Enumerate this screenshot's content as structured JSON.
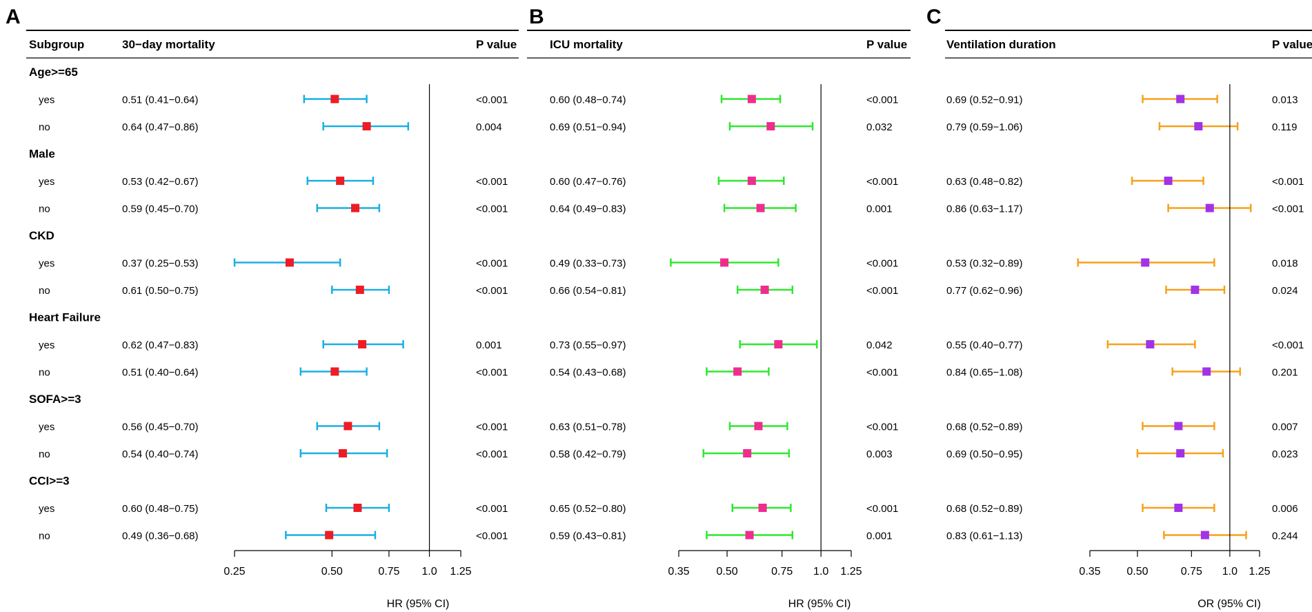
{
  "panels": [
    {
      "letter": "A",
      "subgroup_header": "Subgroup",
      "outcome_header": "30−day mortality",
      "p_header": "P value",
      "axis_label": "HR (95% CI)",
      "colors": {
        "ci": "#1AAFE4",
        "point": "#EE1C25"
      },
      "chart_data": {
        "type": "forest",
        "scale": "log",
        "xlim": [
          0.25,
          1.25
        ],
        "reference": 1.0,
        "ticks": [
          0.25,
          0.5,
          0.75,
          1.0,
          1.25
        ],
        "tick_labels": [
          "0.25",
          "0.50",
          "0.75",
          "1.0",
          "1.25"
        ],
        "xlabel": "HR (95% CI)",
        "groups": [
          {
            "name": "Age>=65",
            "rows": [
              {
                "label": "yes",
                "est": 0.51,
                "lo": 0.41,
                "hi": 0.64,
                "text": "0.51 (0.41−0.64)",
                "p": "<0.001"
              },
              {
                "label": "no",
                "est": 0.64,
                "lo": 0.47,
                "hi": 0.86,
                "text": "0.64 (0.47−0.86)",
                "p": "0.004"
              }
            ]
          },
          {
            "name": "Male",
            "rows": [
              {
                "label": "yes",
                "est": 0.53,
                "lo": 0.42,
                "hi": 0.67,
                "text": "0.53 (0.42−0.67)",
                "p": "<0.001"
              },
              {
                "label": "no",
                "est": 0.59,
                "lo": 0.45,
                "hi": 0.7,
                "text": "0.59 (0.45−0.70)",
                "p": "<0.001"
              }
            ]
          },
          {
            "name": "CKD",
            "rows": [
              {
                "label": "yes",
                "est": 0.37,
                "lo": 0.25,
                "hi": 0.53,
                "text": "0.37 (0.25−0.53)",
                "p": "<0.001"
              },
              {
                "label": "no",
                "est": 0.61,
                "lo": 0.5,
                "hi": 0.75,
                "text": "0.61 (0.50−0.75)",
                "p": "<0.001"
              }
            ]
          },
          {
            "name": "Heart Failure",
            "rows": [
              {
                "label": "yes",
                "est": 0.62,
                "lo": 0.47,
                "hi": 0.83,
                "text": "0.62 (0.47−0.83)",
                "p": "0.001"
              },
              {
                "label": "no",
                "est": 0.51,
                "lo": 0.4,
                "hi": 0.64,
                "text": "0.51 (0.40−0.64)",
                "p": "<0.001"
              }
            ]
          },
          {
            "name": "SOFA>=3",
            "rows": [
              {
                "label": "yes",
                "est": 0.56,
                "lo": 0.45,
                "hi": 0.7,
                "text": "0.56 (0.45−0.70)",
                "p": "<0.001"
              },
              {
                "label": "no",
                "est": 0.54,
                "lo": 0.4,
                "hi": 0.74,
                "text": "0.54 (0.40−0.74)",
                "p": "<0.001"
              }
            ]
          },
          {
            "name": "CCI>=3",
            "rows": [
              {
                "label": "yes",
                "est": 0.6,
                "lo": 0.48,
                "hi": 0.75,
                "text": "0.60 (0.48−0.75)",
                "p": "<0.001"
              },
              {
                "label": "no",
                "est": 0.49,
                "lo": 0.36,
                "hi": 0.68,
                "text": "0.49 (0.36−0.68)",
                "p": "<0.001"
              }
            ]
          }
        ]
      }
    },
    {
      "letter": "B",
      "subgroup_header": "",
      "outcome_header": "ICU mortality",
      "p_header": "P value",
      "axis_label": "HR (95% CI)",
      "colors": {
        "ci": "#2EE82E",
        "point": "#EE2D8F"
      },
      "chart_data": {
        "type": "forest",
        "scale": "log",
        "xlim": [
          0.35,
          1.25
        ],
        "reference": 1.0,
        "ticks": [
          0.35,
          0.5,
          0.75,
          1.0,
          1.25
        ],
        "tick_labels": [
          "0.35",
          "0.50",
          "0.75",
          "1.0",
          "1.25"
        ],
        "xlabel": "HR (95% CI)",
        "groups": [
          {
            "name": "Age>=65",
            "rows": [
              {
                "label": "yes",
                "est": 0.6,
                "lo": 0.48,
                "hi": 0.74,
                "text": "0.60 (0.48−0.74)",
                "p": "<0.001"
              },
              {
                "label": "no",
                "est": 0.69,
                "lo": 0.51,
                "hi": 0.94,
                "text": "0.69 (0.51−0.94)",
                "p": "0.032"
              }
            ]
          },
          {
            "name": "Male",
            "rows": [
              {
                "label": "yes",
                "est": 0.6,
                "lo": 0.47,
                "hi": 0.76,
                "text": "0.60 (0.47−0.76)",
                "p": "<0.001"
              },
              {
                "label": "no",
                "est": 0.64,
                "lo": 0.49,
                "hi": 0.83,
                "text": "0.64 (0.49−0.83)",
                "p": "0.001"
              }
            ]
          },
          {
            "name": "CKD",
            "rows": [
              {
                "label": "yes",
                "est": 0.49,
                "lo": 0.33,
                "hi": 0.73,
                "text": "0.49 (0.33−0.73)",
                "p": "<0.001"
              },
              {
                "label": "no",
                "est": 0.66,
                "lo": 0.54,
                "hi": 0.81,
                "text": "0.66 (0.54−0.81)",
                "p": "<0.001"
              }
            ]
          },
          {
            "name": "Heart Failure",
            "rows": [
              {
                "label": "yes",
                "est": 0.73,
                "lo": 0.55,
                "hi": 0.97,
                "text": "0.73 (0.55−0.97)",
                "p": "0.042"
              },
              {
                "label": "no",
                "est": 0.54,
                "lo": 0.43,
                "hi": 0.68,
                "text": "0.54 (0.43−0.68)",
                "p": "<0.001"
              }
            ]
          },
          {
            "name": "SOFA>=3",
            "rows": [
              {
                "label": "yes",
                "est": 0.63,
                "lo": 0.51,
                "hi": 0.78,
                "text": "0.63 (0.51−0.78)",
                "p": "<0.001"
              },
              {
                "label": "no",
                "est": 0.58,
                "lo": 0.42,
                "hi": 0.79,
                "text": "0.58 (0.42−0.79)",
                "p": "0.003"
              }
            ]
          },
          {
            "name": "CCI>=3",
            "rows": [
              {
                "label": "yes",
                "est": 0.65,
                "lo": 0.52,
                "hi": 0.8,
                "text": "0.65 (0.52−0.80)",
                "p": "<0.001"
              },
              {
                "label": "no",
                "est": 0.59,
                "lo": 0.43,
                "hi": 0.81,
                "text": "0.59 (0.43−0.81)",
                "p": "0.001"
              }
            ]
          }
        ]
      }
    },
    {
      "letter": "C",
      "subgroup_header": "",
      "outcome_header": "Ventilation duration",
      "p_header": "P value",
      "axis_label": "OR (95% CI)",
      "colors": {
        "ci": "#F7A11A",
        "point": "#A232E8"
      },
      "chart_data": {
        "type": "forest",
        "scale": "log",
        "xlim": [
          0.35,
          1.25
        ],
        "reference": 1.0,
        "ticks": [
          0.35,
          0.5,
          0.75,
          1.0,
          1.25
        ],
        "tick_labels": [
          "0.35",
          "0.50",
          "0.75",
          "1.0",
          "1.25"
        ],
        "xlabel": "OR (95% CI)",
        "groups": [
          {
            "name": "Age>=65",
            "rows": [
              {
                "label": "yes",
                "est": 0.69,
                "lo": 0.52,
                "hi": 0.91,
                "text": "0.69 (0.52−0.91)",
                "p": "0.013"
              },
              {
                "label": "no",
                "est": 0.79,
                "lo": 0.59,
                "hi": 1.06,
                "text": "0.79 (0.59−1.06)",
                "p": "0.119"
              }
            ]
          },
          {
            "name": "Male",
            "rows": [
              {
                "label": "yes",
                "est": 0.63,
                "lo": 0.48,
                "hi": 0.82,
                "text": "0.63 (0.48−0.82)",
                "p": "<0.001"
              },
              {
                "label": "no",
                "est": 0.86,
                "lo": 0.63,
                "hi": 1.17,
                "text": "0.86 (0.63−1.17)",
                "p": "<0.001"
              }
            ]
          },
          {
            "name": "CKD",
            "rows": [
              {
                "label": "yes",
                "est": 0.53,
                "lo": 0.32,
                "hi": 0.89,
                "text": "0.53 (0.32−0.89)",
                "p": "0.018"
              },
              {
                "label": "no",
                "est": 0.77,
                "lo": 0.62,
                "hi": 0.96,
                "text": "0.77 (0.62−0.96)",
                "p": "0.024"
              }
            ]
          },
          {
            "name": "Heart Failure",
            "rows": [
              {
                "label": "yes",
                "est": 0.55,
                "lo": 0.4,
                "hi": 0.77,
                "text": "0.55 (0.40−0.77)",
                "p": "<0.001"
              },
              {
                "label": "no",
                "est": 0.84,
                "lo": 0.65,
                "hi": 1.08,
                "text": "0.84 (0.65−1.08)",
                "p": "0.201"
              }
            ]
          },
          {
            "name": "SOFA>=3",
            "rows": [
              {
                "label": "yes",
                "est": 0.68,
                "lo": 0.52,
                "hi": 0.89,
                "text": "0.68 (0.52−0.89)",
                "p": "0.007"
              },
              {
                "label": "no",
                "est": 0.69,
                "lo": 0.5,
                "hi": 0.95,
                "text": "0.69 (0.50−0.95)",
                "p": "0.023"
              }
            ]
          },
          {
            "name": "CCI>=3",
            "rows": [
              {
                "label": "yes",
                "est": 0.68,
                "lo": 0.52,
                "hi": 0.89,
                "text": "0.68 (0.52−0.89)",
                "p": "0.006"
              },
              {
                "label": "no",
                "est": 0.83,
                "lo": 0.61,
                "hi": 1.13,
                "text": "0.83 (0.61−1.13)",
                "p": "0.244"
              }
            ]
          }
        ]
      }
    }
  ]
}
